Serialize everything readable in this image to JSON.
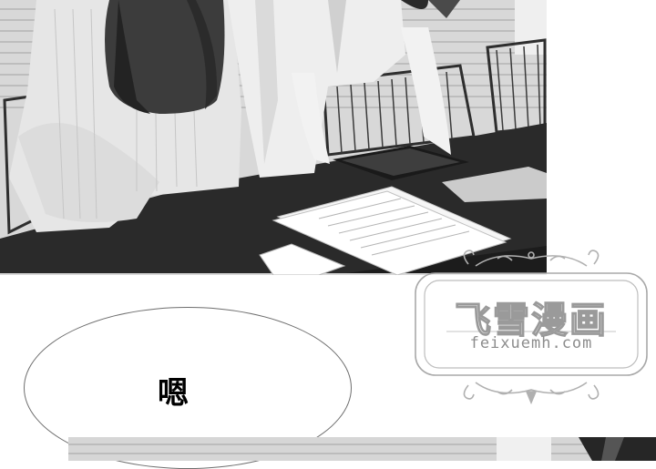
{
  "comic": {
    "speech_bubble_text": "嗯"
  },
  "watermark": {
    "title": "飞雪漫画",
    "url": "feixuemh.com"
  }
}
